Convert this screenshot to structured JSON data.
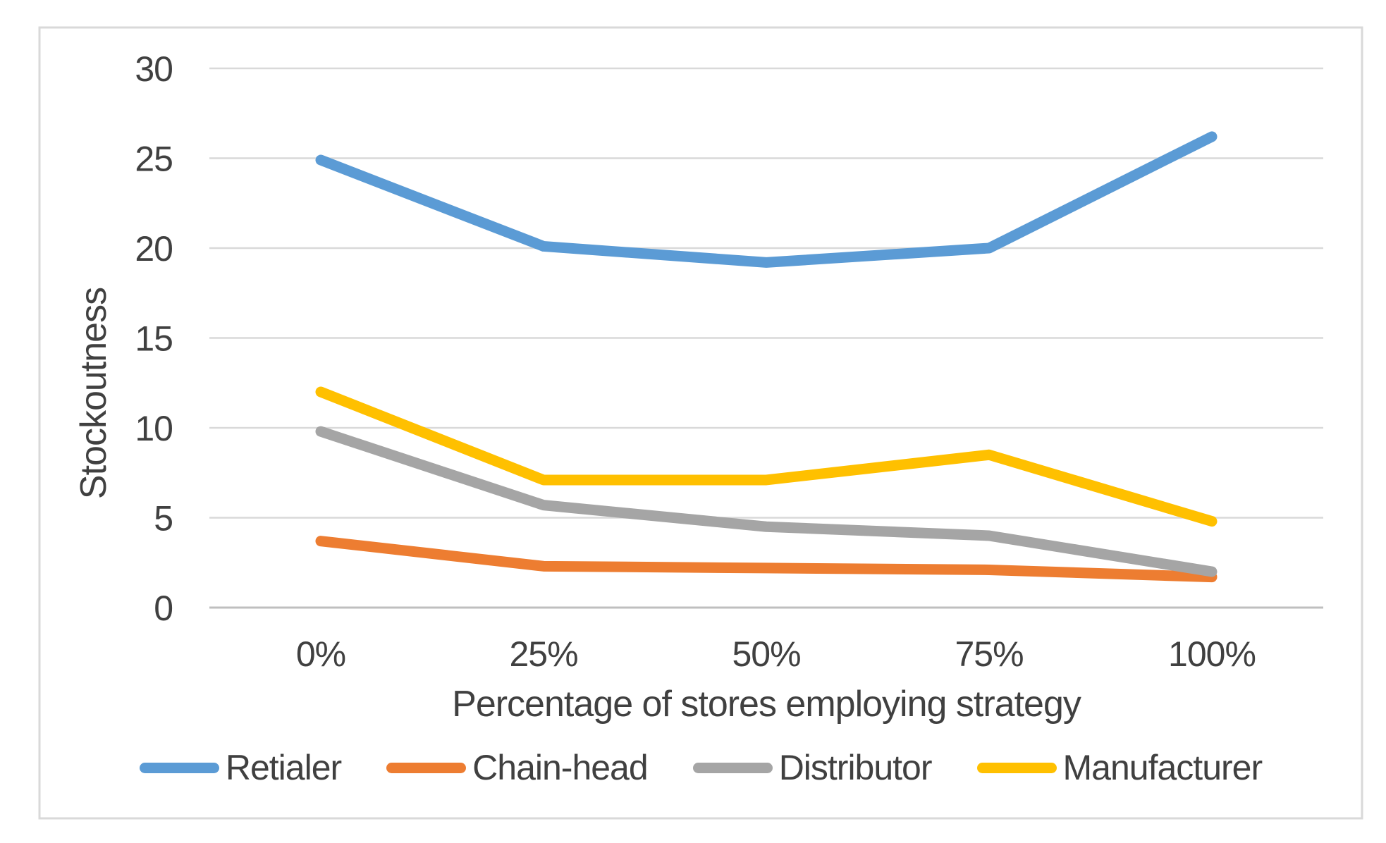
{
  "chart_data": {
    "type": "line",
    "title": "",
    "categories": [
      "0%",
      "25%",
      "50%",
      "75%",
      "100%"
    ],
    "series": [
      {
        "name": "Retialer",
        "color": "#5B9BD5",
        "values": [
          24.9,
          20.1,
          19.2,
          20.0,
          26.2
        ]
      },
      {
        "name": "Chain-head",
        "color": "#ED7D31",
        "values": [
          3.7,
          2.3,
          2.2,
          2.1,
          1.7
        ]
      },
      {
        "name": "Distributor",
        "color": "#A5A5A5",
        "values": [
          9.8,
          5.7,
          4.5,
          4.0,
          2.0
        ]
      },
      {
        "name": "Manufacturer",
        "color": "#FFC000",
        "values": [
          12.0,
          7.1,
          7.1,
          8.5,
          4.8
        ]
      }
    ],
    "xlabel": "Percentage of stores employing strategy",
    "ylabel": "Stockoutness",
    "ylim": [
      0,
      30
    ],
    "y_tick_step": 5,
    "y_tick_labels": [
      "0",
      "5",
      "10",
      "15",
      "20",
      "25",
      "30"
    ],
    "grid": true,
    "legend_position": "bottom",
    "colors": {
      "gridline": "#D9D9D9",
      "axis_line": "#BFBFBF",
      "panel_border": "#D9D9D9",
      "text": "#404040",
      "background": "#FFFFFF"
    }
  }
}
